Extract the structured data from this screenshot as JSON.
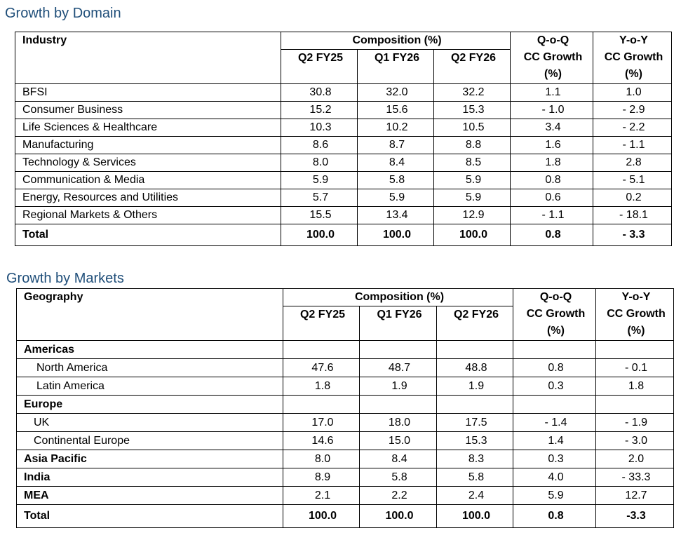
{
  "domain": {
    "title": "Growth by Domain",
    "headers": {
      "label": "Industry",
      "composition": "Composition (%)",
      "periods": [
        "Q2 FY25",
        "Q1 FY26",
        "Q2 FY26"
      ],
      "qoq": [
        "Q-o-Q",
        "CC Growth",
        "(%)"
      ],
      "yoy": [
        "Y-o-Y",
        "CC Growth",
        "(%)"
      ]
    },
    "rows": [
      {
        "label": "BFSI",
        "values": [
          "30.8",
          "32.0",
          "32.2",
          "1.1",
          "1.0"
        ]
      },
      {
        "label": "Consumer Business",
        "values": [
          "15.2",
          "15.6",
          "15.3",
          "- 1.0",
          "- 2.9"
        ]
      },
      {
        "label": "Life Sciences & Healthcare",
        "values": [
          "10.3",
          "10.2",
          "10.5",
          "3.4",
          "- 2.2"
        ]
      },
      {
        "label": "Manufacturing",
        "values": [
          "8.6",
          "8.7",
          "8.8",
          "1.6",
          "- 1.1"
        ]
      },
      {
        "label": "Technology & Services",
        "values": [
          "8.0",
          "8.4",
          "8.5",
          "1.8",
          "2.8"
        ]
      },
      {
        "label": "Communication & Media",
        "values": [
          "5.9",
          "5.8",
          "5.9",
          "0.8",
          "- 5.1"
        ]
      },
      {
        "label": "Energy, Resources and Utilities",
        "values": [
          "5.7",
          "5.9",
          "5.9",
          "0.6",
          "0.2"
        ]
      },
      {
        "label": "Regional Markets & Others",
        "values": [
          "15.5",
          "13.4",
          "12.9",
          "- 1.1",
          "- 18.1"
        ]
      },
      {
        "label": "Total",
        "values": [
          "100.0",
          "100.0",
          "100.0",
          "0.8",
          "- 3.3"
        ],
        "type": "total"
      }
    ]
  },
  "markets": {
    "title": "Growth by Markets",
    "headers": {
      "label": "Geography",
      "composition": "Composition (%)",
      "periods": [
        "Q2 FY25",
        "Q1 FY26",
        "Q2 FY26"
      ],
      "qoq": [
        "Q-o-Q",
        "CC Growth",
        "(%)"
      ],
      "yoy": [
        "Y-o-Y",
        "CC Growth",
        "(%)"
      ]
    },
    "rows": [
      {
        "label": "Americas",
        "values": [
          "",
          "",
          "",
          "",
          ""
        ],
        "type": "group"
      },
      {
        "label": "North America",
        "values": [
          "47.6",
          "48.7",
          "48.8",
          "0.8",
          "- 0.1"
        ],
        "type": "sub"
      },
      {
        "label": "Latin America",
        "values": [
          "1.8",
          "1.9",
          "1.9",
          "0.3",
          "1.8"
        ],
        "type": "sub"
      },
      {
        "label": "Europe",
        "values": [
          "",
          "",
          "",
          "",
          ""
        ],
        "type": "group"
      },
      {
        "label": "UK",
        "values": [
          "17.0",
          "18.0",
          "17.5",
          "- 1.4",
          "- 1.9"
        ],
        "type": "sub2"
      },
      {
        "label": "Continental Europe",
        "values": [
          "14.6",
          "15.0",
          "15.3",
          "1.4",
          "- 3.0"
        ],
        "type": "sub2"
      },
      {
        "label": "Asia Pacific",
        "values": [
          "8.0",
          "8.4",
          "8.3",
          "0.3",
          "2.0"
        ],
        "type": "group"
      },
      {
        "label": "India",
        "values": [
          "8.9",
          "5.8",
          "5.8",
          "4.0",
          "- 33.3"
        ],
        "type": "group"
      },
      {
        "label": "MEA",
        "values": [
          "2.1",
          "2.2",
          "2.4",
          "5.9",
          "12.7"
        ],
        "type": "group"
      },
      {
        "label": "Total",
        "values": [
          "100.0",
          "100.0",
          "100.0",
          "0.8",
          "-3.3"
        ],
        "type": "total"
      }
    ]
  }
}
